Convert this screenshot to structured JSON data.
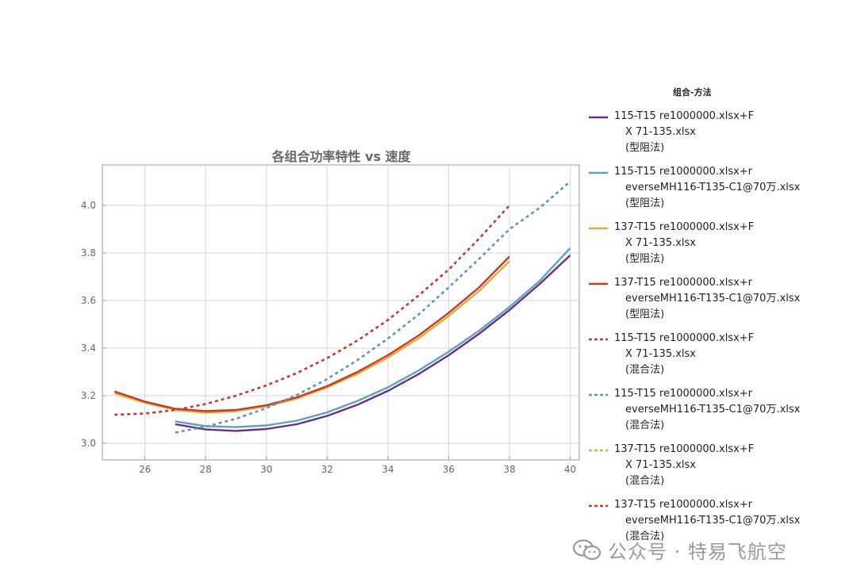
{
  "chart_data": {
    "type": "line",
    "title": "各组合功率特性 vs 速度",
    "xlim": [
      24.6,
      40.3
    ],
    "ylim": [
      2.93,
      4.17
    ],
    "xticks": [
      "26",
      "28",
      "30",
      "32",
      "34",
      "36",
      "38",
      "40"
    ],
    "yticks": [
      "3.0",
      "3.2",
      "3.4",
      "3.6",
      "3.8",
      "4.0"
    ],
    "grid": true,
    "legend_position": "right",
    "legend_title": "组合-方法",
    "series": [
      {
        "name": "115-T15 re1000000.xlsx+F X 71-135.xlsx (型阻法)",
        "label_lines": [
          "115-T15 re1000000.xlsx+F",
          "X 71-135.xlsx",
          "(型阻法)"
        ],
        "color": "#6b2c8f",
        "dash": "solid",
        "x": [
          27,
          28,
          29,
          30,
          31,
          32,
          33,
          34,
          35,
          36,
          37,
          38,
          39,
          40
        ],
        "y": [
          3.08,
          3.058,
          3.052,
          3.06,
          3.08,
          3.115,
          3.162,
          3.22,
          3.29,
          3.37,
          3.46,
          3.56,
          3.67,
          3.79
        ]
      },
      {
        "name": "115-T15 re1000000.xlsx+r everseMH116-T135-C1@70万.xlsx (型阻法)",
        "label_lines": [
          "115-T15 re1000000.xlsx+r",
          "everseMH116-T135-C1@70万.xlsx",
          "(型阻法)"
        ],
        "color": "#5fa2bb",
        "dash": "solid",
        "x": [
          27,
          28,
          29,
          30,
          31,
          32,
          33,
          34,
          35,
          36,
          37,
          38,
          39,
          40
        ],
        "y": [
          3.092,
          3.072,
          3.068,
          3.075,
          3.095,
          3.13,
          3.178,
          3.235,
          3.305,
          3.385,
          3.473,
          3.573,
          3.683,
          3.82
        ]
      },
      {
        "name": "137-T15 re1000000.xlsx+F X 71-135.xlsx (型阻法)",
        "label_lines": [
          "137-T15 re1000000.xlsx+F",
          "X 71-135.xlsx",
          "(型阻法)"
        ],
        "color": "#e8a93a",
        "dash": "solid",
        "x": [
          25,
          26,
          27,
          28,
          29,
          30,
          31,
          32,
          33,
          34,
          35,
          36,
          37,
          38
        ],
        "y": [
          3.21,
          3.17,
          3.14,
          3.128,
          3.135,
          3.155,
          3.188,
          3.235,
          3.292,
          3.36,
          3.44,
          3.535,
          3.64,
          3.765
        ]
      },
      {
        "name": "137-T15 re1000000.xlsx+r everseMH116-T135-C1@70万.xlsx (型阻法)",
        "label_lines": [
          "137-T15 re1000000.xlsx+r",
          "everseMH116-T135-C1@70万.xlsx",
          "(型阻法)"
        ],
        "color": "#c83a22",
        "dash": "solid",
        "x": [
          25,
          26,
          27,
          28,
          29,
          30,
          31,
          32,
          33,
          34,
          35,
          36,
          37,
          38
        ],
        "y": [
          3.218,
          3.175,
          3.145,
          3.135,
          3.14,
          3.16,
          3.193,
          3.24,
          3.3,
          3.37,
          3.452,
          3.548,
          3.655,
          3.785
        ]
      },
      {
        "name": "115-T15 re1000000.xlsx+F X 71-135.xlsx (混合法)",
        "label_lines": [
          "115-T15 re1000000.xlsx+F",
          "X 71-135.xlsx",
          "(混合法)"
        ],
        "color": "#8a3f8a",
        "dash": "dashed",
        "x": [],
        "y": []
      },
      {
        "name": "115-T15 re1000000.xlsx+r everseMH116-T135-C1@70万.xlsx (混合法)",
        "label_lines": [
          "115-T15 re1000000.xlsx+r",
          "everseMH116-T135-C1@70万.xlsx",
          "(混合法)"
        ],
        "color": "#5f95b3",
        "dash": "dashed",
        "x": [
          27,
          28,
          29,
          30,
          31,
          32,
          33,
          34,
          35,
          36,
          37,
          38,
          39,
          40
        ],
        "y": [
          3.045,
          3.07,
          3.103,
          3.148,
          3.203,
          3.27,
          3.35,
          3.44,
          3.54,
          3.655,
          3.775,
          3.9,
          3.99,
          4.1
        ]
      },
      {
        "name": "137-T15 re1000000.xlsx+F X 71-135.xlsx (混合法)",
        "label_lines": [
          "137-T15 re1000000.xlsx+F",
          "X 71-135.xlsx",
          "(混合法)"
        ],
        "color": "#b5c935",
        "dash": "dashed",
        "x": [],
        "y": []
      },
      {
        "name": "137-T15 re1000000.xlsx+r everseMH116-T135-C1@70万.xlsx (混合法)",
        "label_lines": [
          "137-T15 re1000000.xlsx+r",
          "everseMH116-T135-C1@70万.xlsx",
          "(混合法)"
        ],
        "color": "#c8382c",
        "dash": "dashed",
        "x": [
          25,
          26,
          27,
          28,
          29,
          30,
          31,
          32,
          33,
          34,
          35,
          36,
          37,
          38
        ],
        "y": [
          3.12,
          3.125,
          3.14,
          3.165,
          3.2,
          3.243,
          3.295,
          3.358,
          3.432,
          3.518,
          3.62,
          3.73,
          3.86,
          4.0
        ]
      }
    ]
  },
  "watermark": {
    "icon": "wechat-icon",
    "text": "公众号 · 特易飞航空"
  }
}
